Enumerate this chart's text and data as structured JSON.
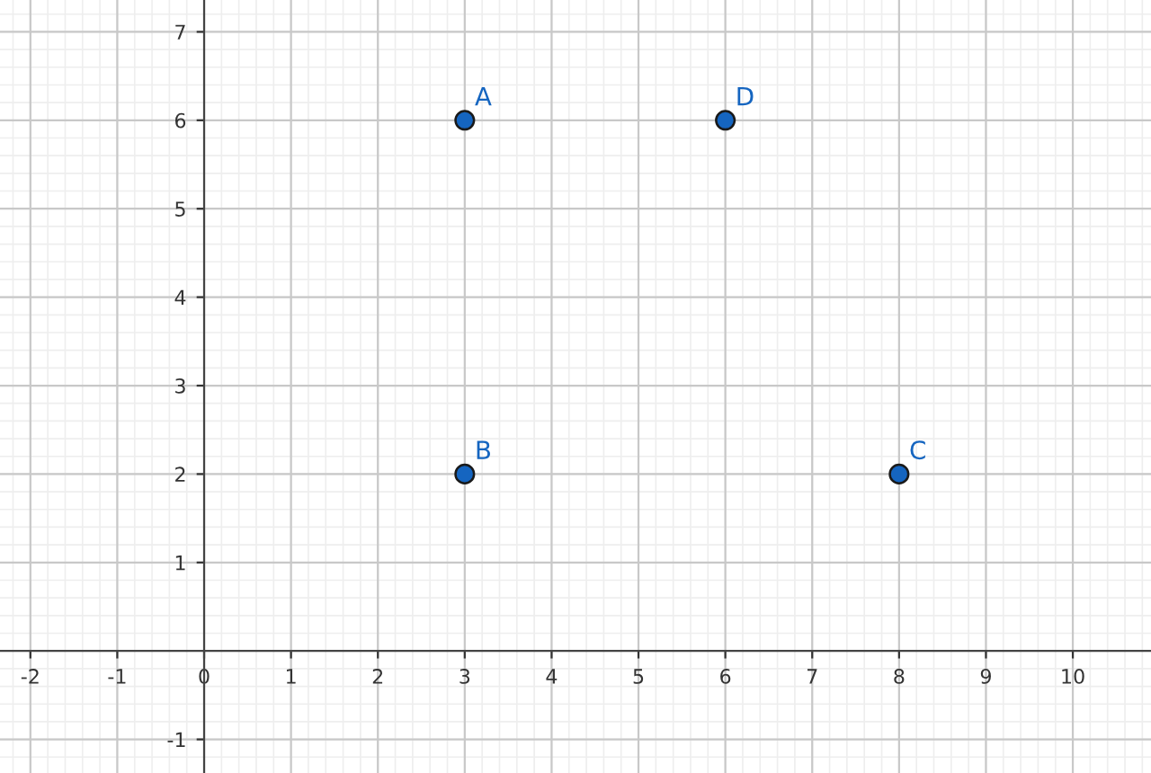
{
  "chart_data": {
    "type": "scatter",
    "x": [
      3,
      3,
      8,
      6
    ],
    "values": [
      6,
      2,
      2,
      6
    ],
    "color": "#1565c0",
    "marker": "circle",
    "annotations": [
      {
        "text": "A",
        "x": 3,
        "y": 6
      },
      {
        "text": "B",
        "x": 3,
        "y": 2
      },
      {
        "text": "C",
        "x": 8,
        "y": 2
      },
      {
        "text": "D",
        "x": 6,
        "y": 6
      }
    ],
    "xlim": [
      -2.35,
      10.9
    ],
    "ylim": [
      -1.38,
      7.36
    ],
    "xticks": [
      -2,
      -1,
      0,
      1,
      2,
      3,
      4,
      5,
      6,
      7,
      8,
      9,
      10
    ],
    "yticks": [
      -1,
      1,
      2,
      3,
      4,
      5,
      6,
      7
    ],
    "grid": true
  }
}
